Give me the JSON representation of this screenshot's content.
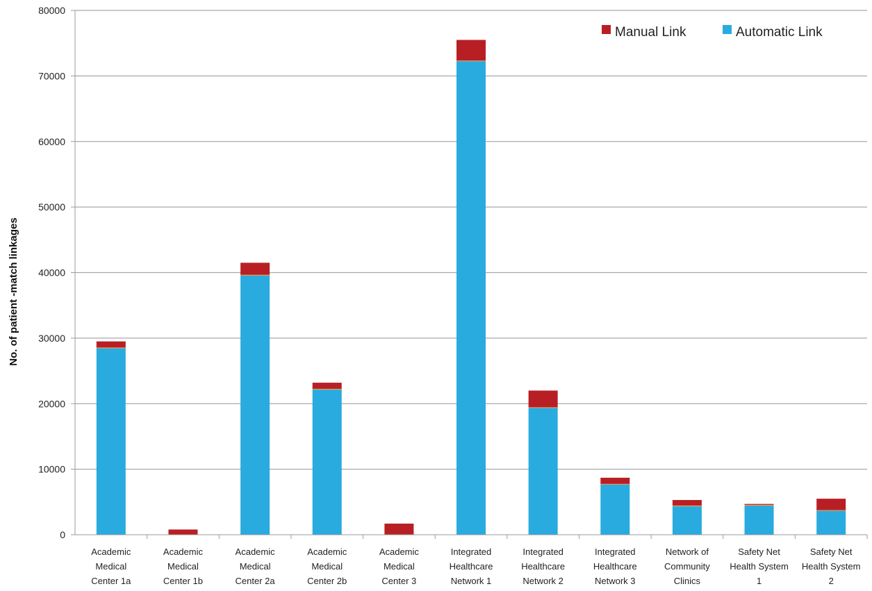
{
  "chart_data": {
    "type": "bar",
    "stacked": true,
    "title": "",
    "xlabel": "",
    "ylabel": "No. of patient -match linkages",
    "ylim": [
      0,
      80000
    ],
    "yticks": [
      0,
      10000,
      20000,
      30000,
      40000,
      50000,
      60000,
      70000,
      80000
    ],
    "grid": true,
    "legend_position": "top-right",
    "categories": [
      [
        "Academic",
        "Medical",
        "Center 1a"
      ],
      [
        "Academic",
        "Medical",
        "Center 1b"
      ],
      [
        "Academic",
        "Medical",
        "Center 2a"
      ],
      [
        "Academic",
        "Medical",
        "Center 2b"
      ],
      [
        "Academic",
        "Medical",
        "Center 3"
      ],
      [
        "Integrated",
        "Healthcare",
        "Network 1"
      ],
      [
        "Integrated",
        "Healthcare",
        "Network 2"
      ],
      [
        "Integrated",
        "Healthcare",
        "Network 3"
      ],
      [
        "Network of",
        "Community",
        "Clinics"
      ],
      [
        "Safety Net",
        "Health System",
        "1"
      ],
      [
        "Safety Net",
        "Health System",
        "2"
      ]
    ],
    "series": [
      {
        "name": "Automatic Link",
        "color": "#29abe0",
        "values": [
          28500,
          0,
          39600,
          22200,
          0,
          72300,
          19400,
          7700,
          4400,
          4500,
          3700
        ]
      },
      {
        "name": "Manual Link",
        "color": "#b81f25",
        "values": [
          1000,
          800,
          1900,
          1000,
          1700,
          3200,
          2600,
          1000,
          900,
          200,
          1800
        ]
      }
    ],
    "legend_order": [
      "Manual Link",
      "Automatic Link"
    ]
  }
}
